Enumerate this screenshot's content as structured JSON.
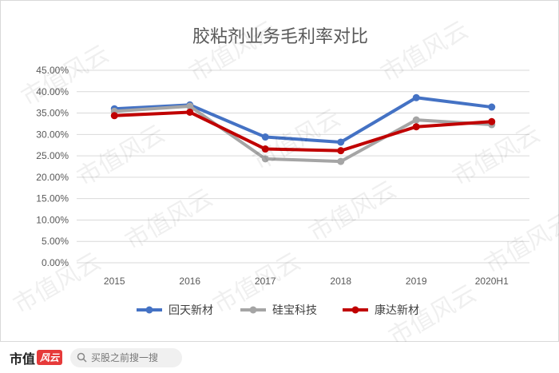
{
  "chart_data": {
    "type": "line",
    "title": "胶粘剂业务毛利率对比",
    "categories": [
      "2015",
      "2016",
      "2017",
      "2018",
      "2019",
      "2020H1"
    ],
    "y_ticks": [
      "0.00%",
      "5.00%",
      "10.00%",
      "15.00%",
      "20.00%",
      "25.00%",
      "30.00%",
      "35.00%",
      "40.00%",
      "45.00%"
    ],
    "ylim": [
      0,
      45
    ],
    "grid": "horizontal",
    "legend_position": "bottom",
    "series": [
      {
        "name": "回天新材",
        "color": "#4472C4",
        "values": [
          36.0,
          36.9,
          29.4,
          28.2,
          38.6,
          36.4
        ]
      },
      {
        "name": "硅宝科技",
        "color": "#A5A5A5",
        "values": [
          35.4,
          36.6,
          24.3,
          23.7,
          33.4,
          32.3
        ]
      },
      {
        "name": "康达新材",
        "color": "#C00000",
        "values": [
          34.4,
          35.2,
          26.6,
          26.2,
          31.8,
          33.0
        ]
      }
    ]
  },
  "watermark": "市值风云",
  "footer": {
    "brand": "市值",
    "brand_badge": "风云",
    "search_placeholder": "买股之前搜一搜"
  }
}
